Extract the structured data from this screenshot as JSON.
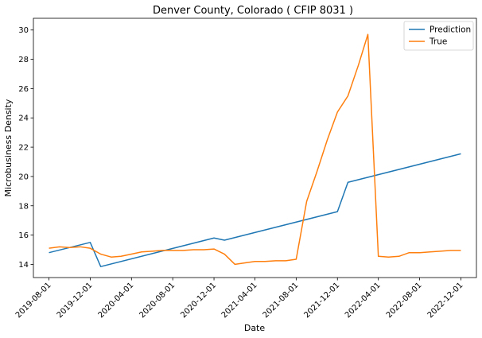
{
  "chart_data": {
    "type": "line",
    "title": "Denver County, Colorado ( CFIP 8031 )",
    "xlabel": "Date",
    "ylabel": "Microbusiness Density",
    "x_tick_labels": [
      "2019-08-01",
      "2019-12-01",
      "2020-04-01",
      "2020-08-01",
      "2020-12-01",
      "2021-04-01",
      "2021-08-01",
      "2021-12-01",
      "2022-04-01",
      "2022-08-01",
      "2022-12-01"
    ],
    "y_ticks": [
      14,
      16,
      18,
      20,
      22,
      24,
      26,
      28,
      30
    ],
    "ylim": [
      13.1,
      30.8
    ],
    "xlim": [
      "2019-06-16",
      "2023-01-16"
    ],
    "grid": false,
    "legend_position": "top-right",
    "colors": {
      "Prediction": "#1f77b4",
      "True": "#ff7f0e"
    },
    "series": [
      {
        "name": "Prediction",
        "x": [
          "2019-08-01",
          "2019-12-01",
          "2020-01-01",
          "2020-12-01",
          "2021-01-01",
          "2021-12-01",
          "2022-01-01",
          "2022-12-01"
        ],
        "values": [
          14.8,
          15.5,
          13.85,
          15.8,
          15.65,
          17.6,
          19.6,
          21.55
        ]
      },
      {
        "name": "True",
        "x": [
          "2019-08-01",
          "2019-09-01",
          "2019-10-01",
          "2019-11-01",
          "2019-12-01",
          "2020-01-01",
          "2020-02-01",
          "2020-03-01",
          "2020-04-01",
          "2020-05-01",
          "2020-06-01",
          "2020-07-01",
          "2020-08-01",
          "2020-09-01",
          "2020-10-01",
          "2020-11-01",
          "2020-12-01",
          "2021-01-01",
          "2021-02-01",
          "2021-03-01",
          "2021-04-01",
          "2021-05-01",
          "2021-06-01",
          "2021-07-01",
          "2021-08-01",
          "2021-09-01",
          "2021-10-01",
          "2021-11-01",
          "2021-12-01",
          "2022-01-01",
          "2022-02-01",
          "2022-03-01",
          "2022-04-01",
          "2022-05-01",
          "2022-06-01",
          "2022-07-01",
          "2022-08-01",
          "2022-09-01",
          "2022-10-01",
          "2022-11-01",
          "2022-12-01"
        ],
        "values": [
          15.1,
          15.2,
          15.15,
          15.2,
          15.1,
          14.7,
          14.5,
          14.55,
          14.7,
          14.85,
          14.9,
          14.95,
          14.95,
          14.95,
          15.0,
          15.0,
          15.05,
          14.7,
          14.0,
          14.1,
          14.2,
          14.2,
          14.25,
          14.25,
          14.35,
          18.3,
          20.3,
          22.5,
          24.4,
          25.5,
          27.6,
          29.7,
          14.55,
          14.5,
          14.55,
          14.8,
          14.8,
          14.85,
          14.9,
          14.95,
          14.95
        ]
      }
    ]
  }
}
